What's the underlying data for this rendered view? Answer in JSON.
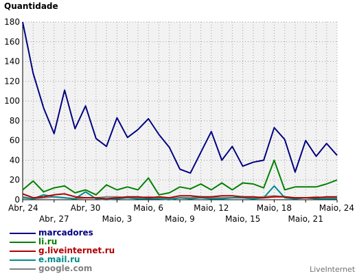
{
  "chart_data": {
    "type": "line",
    "ylabel": "Quantidade",
    "ylim": [
      0,
      180
    ],
    "yticks": [
      0,
      20,
      40,
      60,
      80,
      100,
      120,
      140,
      160,
      180
    ],
    "x_tick_labels_row1": [
      {
        "label": "Abr, 24",
        "index": 0
      },
      {
        "label": "Abr, 30",
        "index": 6
      },
      {
        "label": "Maio, 6",
        "index": 12
      },
      {
        "label": "Maio, 12",
        "index": 18
      },
      {
        "label": "Maio, 18",
        "index": 24
      },
      {
        "label": "Maio, 24",
        "index": 30
      }
    ],
    "x_tick_labels_row2": [
      {
        "label": "Abr, 27",
        "index": 3
      },
      {
        "label": "Maio, 3",
        "index": 9
      },
      {
        "label": "Maio, 9",
        "index": 15
      },
      {
        "label": "Maio, 15",
        "index": 21
      },
      {
        "label": "Maio, 21",
        "index": 27
      }
    ],
    "grid": true,
    "series": [
      {
        "name": "marcadores",
        "color": "#000080",
        "values": [
          180,
          128,
          93,
          67,
          111,
          72,
          95,
          62,
          54,
          83,
          63,
          71,
          82,
          66,
          53,
          31,
          27,
          48,
          69,
          40,
          54,
          34,
          38,
          40,
          73,
          61,
          28,
          60,
          44,
          57,
          45
        ]
      },
      {
        "name": "li.ru",
        "color": "#008000",
        "values": [
          10,
          19,
          8,
          12,
          14,
          7,
          10,
          5,
          15,
          10,
          13,
          10,
          22,
          5,
          7,
          13,
          11,
          16,
          10,
          17,
          10,
          17,
          16,
          12,
          40,
          10,
          13,
          13,
          13,
          16,
          20
        ]
      },
      {
        "name": "g.liveinternet.ru",
        "color": "#b00000",
        "values": [
          6,
          2,
          3,
          5,
          6,
          3,
          2,
          2,
          1,
          2,
          3,
          3,
          2,
          3,
          2,
          4,
          4,
          3,
          3,
          4,
          4,
          3,
          3,
          2,
          3,
          3,
          2,
          2,
          2,
          3,
          3
        ]
      },
      {
        "name": "e.mail.ru",
        "color": "#008b8b",
        "values": [
          2,
          1,
          5,
          3,
          2,
          1,
          8,
          1,
          0,
          1,
          2,
          1,
          1,
          1,
          0,
          2,
          1,
          2,
          1,
          1,
          2,
          2,
          1,
          2,
          14,
          2,
          1,
          2,
          1,
          1,
          1
        ]
      },
      {
        "name": "google.com",
        "color": "#808080",
        "values": [
          3,
          1,
          2,
          3,
          2,
          1,
          2,
          2,
          3,
          3,
          2,
          2,
          3,
          2,
          1,
          2,
          2,
          3,
          2,
          2,
          2,
          3,
          2,
          3,
          4,
          3,
          2,
          2,
          3,
          2,
          2
        ]
      }
    ]
  },
  "legend": {
    "items": [
      {
        "label": "marcadores",
        "color": "#000080"
      },
      {
        "label": "li.ru",
        "color": "#008000"
      },
      {
        "label": "g.liveinternet.ru",
        "color": "#b00000"
      },
      {
        "label": "e.mail.ru",
        "color": "#008b8b"
      },
      {
        "label": "google.com",
        "color": "#808080"
      }
    ]
  },
  "watermark": "LiveInternet"
}
